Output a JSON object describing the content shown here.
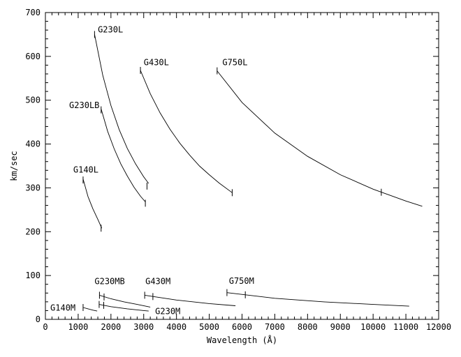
{
  "chart_data": {
    "type": "line",
    "xlabel": "Wavelength (Å)",
    "ylabel": "km/sec",
    "xlim": [
      0,
      12000
    ],
    "ylim": [
      0,
      700
    ],
    "x_ticks": [
      0,
      1000,
      2000,
      3000,
      4000,
      5000,
      6000,
      7000,
      8000,
      9000,
      10000,
      11000,
      12000
    ],
    "y_ticks": [
      0,
      100,
      200,
      300,
      400,
      500,
      600,
      700
    ],
    "grid": false,
    "legend": "none",
    "series": [
      {
        "name": "G230L",
        "x": [
          1500,
          1750,
          2000,
          2250,
          2500,
          2750,
          3000,
          3150
        ],
        "y": [
          650,
          557,
          488,
          433,
          390,
          355,
          325,
          310
        ],
        "markers": [
          [
            1500,
            650
          ],
          [
            3100,
            304
          ]
        ],
        "label_at": [
          1600,
          655
        ],
        "label_anchor": "start"
      },
      {
        "name": "G230LB",
        "x": [
          1700,
          1900,
          2100,
          2300,
          2500,
          2700,
          2900,
          3050
        ],
        "y": [
          480,
          429,
          389,
          355,
          327,
          302,
          281,
          268
        ],
        "markers": [
          [
            1700,
            478
          ],
          [
            3050,
            265
          ]
        ],
        "label_at": [
          1650,
          482
        ],
        "label_anchor": "end"
      },
      {
        "name": "G430L",
        "x": [
          2900,
          3200,
          3500,
          3800,
          4100,
          4400,
          4700,
          5000,
          5300,
          5700
        ],
        "y": [
          568,
          515,
          471,
          434,
          402,
          375,
          350,
          330,
          311,
          289
        ],
        "markers": [
          [
            2900,
            568
          ],
          [
            5700,
            289
          ]
        ],
        "label_at": [
          3000,
          580
        ],
        "label_anchor": "start"
      },
      {
        "name": "G750L",
        "x": [
          5240,
          6000,
          7000,
          8000,
          9000,
          10000,
          11000,
          11500
        ],
        "y": [
          567,
          495,
          425,
          372,
          330,
          297,
          270,
          258
        ],
        "markers": [
          [
            5240,
            567
          ],
          [
            10250,
            290
          ]
        ],
        "label_at": [
          5400,
          580
        ],
        "label_anchor": "start"
      },
      {
        "name": "G140L",
        "x": [
          1150,
          1300,
          1450,
          1600,
          1720
        ],
        "y": [
          320,
          280,
          252,
          228,
          208
        ],
        "markers": [
          [
            1150,
            318
          ],
          [
            1700,
            208
          ]
        ],
        "label_at": [
          850,
          335
        ],
        "label_anchor": "start"
      },
      {
        "name": "G230MB",
        "x": [
          1650,
          2000,
          2400,
          2800,
          3200
        ],
        "y": [
          55,
          47,
          40,
          34,
          28
        ],
        "markers": [
          [
            1650,
            55
          ],
          [
            1790,
            51
          ]
        ],
        "label_at": [
          1500,
          80
        ],
        "label_anchor": "start"
      },
      {
        "name": "G230M",
        "x": [
          1640,
          2000,
          2500,
          3000,
          3150
        ],
        "y": [
          34,
          29,
          24,
          20,
          19
        ],
        "markers": [
          [
            1640,
            34
          ],
          [
            1780,
            32
          ]
        ],
        "label_at": [
          3350,
          12
        ],
        "label_anchor": "start"
      },
      {
        "name": "G140M",
        "x": [
          1150,
          1300,
          1450,
          1580
        ],
        "y": [
          27,
          24,
          21,
          19
        ],
        "markers": [
          [
            1150,
            27
          ]
        ],
        "label_at": [
          150,
          20
        ],
        "label_anchor": "start"
      },
      {
        "name": "G430M",
        "x": [
          3030,
          4000,
          5000,
          5800
        ],
        "y": [
          55,
          44,
          36,
          31
        ],
        "markers": [
          [
            3030,
            55
          ],
          [
            3280,
            52
          ]
        ],
        "label_at": [
          3050,
          80
        ],
        "label_anchor": "start"
      },
      {
        "name": "G750M",
        "x": [
          5540,
          7000,
          8500,
          10000,
          11100
        ],
        "y": [
          61,
          48,
          40,
          34,
          30
        ],
        "markers": [
          [
            5540,
            61
          ],
          [
            6100,
            56
          ]
        ],
        "label_at": [
          5600,
          81
        ],
        "label_anchor": "start"
      }
    ]
  }
}
